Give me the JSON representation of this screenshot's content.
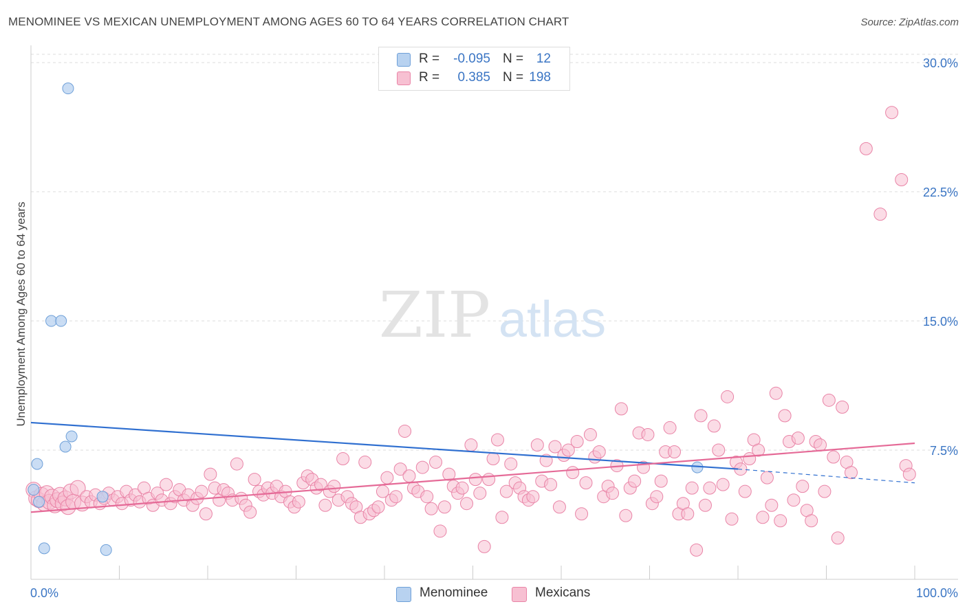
{
  "title": "MENOMINEE VS MEXICAN UNEMPLOYMENT AMONG AGES 60 TO 64 YEARS CORRELATION CHART",
  "source": "Source: ZipAtlas.com",
  "watermark": {
    "zip": "ZIP",
    "atlas": "atlas"
  },
  "colors": {
    "blue_fill": "#b8d2f0",
    "blue_stroke": "#6d9fd8",
    "blue_line": "#2f6fd0",
    "pink_fill": "#f7c0d2",
    "pink_stroke": "#e983a6",
    "pink_line": "#e56a97",
    "axis_text": "#3a75c4"
  },
  "legend": {
    "rows": [
      {
        "r_label": "R =",
        "r_value": "-0.095",
        "n_label": "N =",
        "n_value": "12"
      },
      {
        "r_label": "R =",
        "r_value": "0.385",
        "n_label": "N =",
        "n_value": "198"
      }
    ]
  },
  "bottom_legend": {
    "menominee": "Menominee",
    "mexicans": "Mexicans"
  },
  "chart_data": {
    "type": "scatter",
    "title": "MENOMINEE VS MEXICAN UNEMPLOYMENT AMONG AGES 60 TO 64 YEARS CORRELATION CHART",
    "xlabel": "",
    "ylabel": "Unemployment Among Ages 60 to 64 years",
    "xlim": [
      0,
      100
    ],
    "ylim": [
      0,
      31
    ],
    "x_tick_labels": [
      "0.0%",
      "100.0%"
    ],
    "y_ticks": [
      7.5,
      15.0,
      22.5,
      30.0
    ],
    "y_tick_labels": [
      "7.5%",
      "15.0%",
      "22.5%",
      "30.0%"
    ],
    "grid": true,
    "series": [
      {
        "name": "Menominee",
        "color": "#6d9fd8",
        "trend": {
          "x": [
            0,
            80
          ],
          "y": [
            9.1,
            6.4
          ],
          "dashed_to": [
            100,
            5.6
          ]
        },
        "points": [
          [
            4.2,
            28.5
          ],
          [
            2.3,
            15.0
          ],
          [
            3.4,
            15.0
          ],
          [
            4.6,
            8.3
          ],
          [
            3.9,
            7.7
          ],
          [
            0.7,
            6.7
          ],
          [
            0.9,
            4.5
          ],
          [
            8.1,
            4.8
          ],
          [
            1.5,
            1.8
          ],
          [
            8.5,
            1.7
          ],
          [
            75.4,
            6.5
          ],
          [
            0.3,
            5.2
          ]
        ]
      },
      {
        "name": "Mexicans",
        "color": "#e983a6",
        "trend": {
          "x": [
            0,
            100
          ],
          "y": [
            3.9,
            7.9
          ]
        },
        "points": [
          [
            0.3,
            5.2
          ],
          [
            0.6,
            4.7
          ],
          [
            0.9,
            4.6
          ],
          [
            1.2,
            4.9
          ],
          [
            1.5,
            4.4
          ],
          [
            1.8,
            5.0
          ],
          [
            2.1,
            4.5
          ],
          [
            2.4,
            4.8
          ],
          [
            2.7,
            4.3
          ],
          [
            3.0,
            4.6
          ],
          [
            3.3,
            4.9
          ],
          [
            3.6,
            4.4
          ],
          [
            3.9,
            4.7
          ],
          [
            4.2,
            4.2
          ],
          [
            4.5,
            5.1
          ],
          [
            4.8,
            4.5
          ],
          [
            5.3,
            5.3
          ],
          [
            5.8,
            4.4
          ],
          [
            6.3,
            4.8
          ],
          [
            6.8,
            4.5
          ],
          [
            7.3,
            4.9
          ],
          [
            7.8,
            4.4
          ],
          [
            8.3,
            4.7
          ],
          [
            8.8,
            5.0
          ],
          [
            9.3,
            4.6
          ],
          [
            9.8,
            4.8
          ],
          [
            10.3,
            4.4
          ],
          [
            10.8,
            5.1
          ],
          [
            11.3,
            4.6
          ],
          [
            11.8,
            4.9
          ],
          [
            12.3,
            4.5
          ],
          [
            12.8,
            5.3
          ],
          [
            13.3,
            4.7
          ],
          [
            13.8,
            4.3
          ],
          [
            14.3,
            5.0
          ],
          [
            14.8,
            4.6
          ],
          [
            15.3,
            5.5
          ],
          [
            15.8,
            4.4
          ],
          [
            16.3,
            4.8
          ],
          [
            16.8,
            5.2
          ],
          [
            17.3,
            4.6
          ],
          [
            17.8,
            4.9
          ],
          [
            18.3,
            4.3
          ],
          [
            18.8,
            4.7
          ],
          [
            19.3,
            5.1
          ],
          [
            19.8,
            3.8
          ],
          [
            20.3,
            6.1
          ],
          [
            20.8,
            5.3
          ],
          [
            21.3,
            4.6
          ],
          [
            21.8,
            5.2
          ],
          [
            22.3,
            5.0
          ],
          [
            22.8,
            4.6
          ],
          [
            23.3,
            6.7
          ],
          [
            23.8,
            4.7
          ],
          [
            24.3,
            4.3
          ],
          [
            24.8,
            3.9
          ],
          [
            25.3,
            5.8
          ],
          [
            25.8,
            5.1
          ],
          [
            26.3,
            4.9
          ],
          [
            26.8,
            5.3
          ],
          [
            27.3,
            5.0
          ],
          [
            27.8,
            5.4
          ],
          [
            28.3,
            4.8
          ],
          [
            28.8,
            5.1
          ],
          [
            29.3,
            4.5
          ],
          [
            29.8,
            4.2
          ],
          [
            30.3,
            4.5
          ],
          [
            30.8,
            5.6
          ],
          [
            31.3,
            6.0
          ],
          [
            31.8,
            5.8
          ],
          [
            32.3,
            5.3
          ],
          [
            32.8,
            5.5
          ],
          [
            33.3,
            4.3
          ],
          [
            33.8,
            5.1
          ],
          [
            34.3,
            5.4
          ],
          [
            34.8,
            4.6
          ],
          [
            35.3,
            7.0
          ],
          [
            35.8,
            4.8
          ],
          [
            36.3,
            4.4
          ],
          [
            36.8,
            4.2
          ],
          [
            37.3,
            3.6
          ],
          [
            37.8,
            6.8
          ],
          [
            38.3,
            3.8
          ],
          [
            38.8,
            4.0
          ],
          [
            39.3,
            4.2
          ],
          [
            39.8,
            5.1
          ],
          [
            40.3,
            5.9
          ],
          [
            40.8,
            4.6
          ],
          [
            41.3,
            4.8
          ],
          [
            41.8,
            6.4
          ],
          [
            42.3,
            8.6
          ],
          [
            42.8,
            6.0
          ],
          [
            43.3,
            5.3
          ],
          [
            43.8,
            5.1
          ],
          [
            44.3,
            6.5
          ],
          [
            44.8,
            4.8
          ],
          [
            45.3,
            4.1
          ],
          [
            45.8,
            6.8
          ],
          [
            46.3,
            2.8
          ],
          [
            46.8,
            4.2
          ],
          [
            47.3,
            6.1
          ],
          [
            47.8,
            5.4
          ],
          [
            48.3,
            5.0
          ],
          [
            48.8,
            5.3
          ],
          [
            49.3,
            4.4
          ],
          [
            49.8,
            7.8
          ],
          [
            50.3,
            5.8
          ],
          [
            50.8,
            5.0
          ],
          [
            51.3,
            1.9
          ],
          [
            51.8,
            5.8
          ],
          [
            52.3,
            7.0
          ],
          [
            52.8,
            8.1
          ],
          [
            53.3,
            3.6
          ],
          [
            53.8,
            5.1
          ],
          [
            54.3,
            6.7
          ],
          [
            54.8,
            5.6
          ],
          [
            55.3,
            5.3
          ],
          [
            55.8,
            4.8
          ],
          [
            56.3,
            4.6
          ],
          [
            56.8,
            4.8
          ],
          [
            57.3,
            7.8
          ],
          [
            57.8,
            5.7
          ],
          [
            58.3,
            6.9
          ],
          [
            58.8,
            5.5
          ],
          [
            59.3,
            7.7
          ],
          [
            59.8,
            4.2
          ],
          [
            60.3,
            7.2
          ],
          [
            60.8,
            7.5
          ],
          [
            61.3,
            6.2
          ],
          [
            61.8,
            8.0
          ],
          [
            62.3,
            3.8
          ],
          [
            62.8,
            5.6
          ],
          [
            63.3,
            8.4
          ],
          [
            63.8,
            7.1
          ],
          [
            64.3,
            7.4
          ],
          [
            64.8,
            4.8
          ],
          [
            65.3,
            5.4
          ],
          [
            65.8,
            5.0
          ],
          [
            66.3,
            6.6
          ],
          [
            66.8,
            9.9
          ],
          [
            67.3,
            3.7
          ],
          [
            67.8,
            5.3
          ],
          [
            68.3,
            5.7
          ],
          [
            68.8,
            8.5
          ],
          [
            69.3,
            6.5
          ],
          [
            69.8,
            8.4
          ],
          [
            70.3,
            4.4
          ],
          [
            70.8,
            4.8
          ],
          [
            71.3,
            5.7
          ],
          [
            71.8,
            7.4
          ],
          [
            72.3,
            8.8
          ],
          [
            72.8,
            7.4
          ],
          [
            73.3,
            3.8
          ],
          [
            73.8,
            4.4
          ],
          [
            74.3,
            3.8
          ],
          [
            74.8,
            5.3
          ],
          [
            75.3,
            1.7
          ],
          [
            75.8,
            9.5
          ],
          [
            76.3,
            4.3
          ],
          [
            76.8,
            5.3
          ],
          [
            77.3,
            8.9
          ],
          [
            77.8,
            7.5
          ],
          [
            78.3,
            5.5
          ],
          [
            78.8,
            10.6
          ],
          [
            79.3,
            3.5
          ],
          [
            79.8,
            6.8
          ],
          [
            80.3,
            6.4
          ],
          [
            80.8,
            5.1
          ],
          [
            81.3,
            7.0
          ],
          [
            81.8,
            8.1
          ],
          [
            82.3,
            7.5
          ],
          [
            82.8,
            3.6
          ],
          [
            83.3,
            5.9
          ],
          [
            83.8,
            4.3
          ],
          [
            84.3,
            10.8
          ],
          [
            84.8,
            3.4
          ],
          [
            85.3,
            9.5
          ],
          [
            85.8,
            8.0
          ],
          [
            86.3,
            4.6
          ],
          [
            86.8,
            8.2
          ],
          [
            87.3,
            5.4
          ],
          [
            87.8,
            4.0
          ],
          [
            88.3,
            3.4
          ],
          [
            88.8,
            8.0
          ],
          [
            89.3,
            7.8
          ],
          [
            89.8,
            5.1
          ],
          [
            90.3,
            10.4
          ],
          [
            90.8,
            7.1
          ],
          [
            91.3,
            2.4
          ],
          [
            91.8,
            10.0
          ],
          [
            92.3,
            6.8
          ],
          [
            92.8,
            6.2
          ],
          [
            94.5,
            25.0
          ],
          [
            96.1,
            21.2
          ],
          [
            97.4,
            27.1
          ],
          [
            98.5,
            23.2
          ],
          [
            99.0,
            6.6
          ],
          [
            99.4,
            6.1
          ]
        ]
      }
    ]
  }
}
